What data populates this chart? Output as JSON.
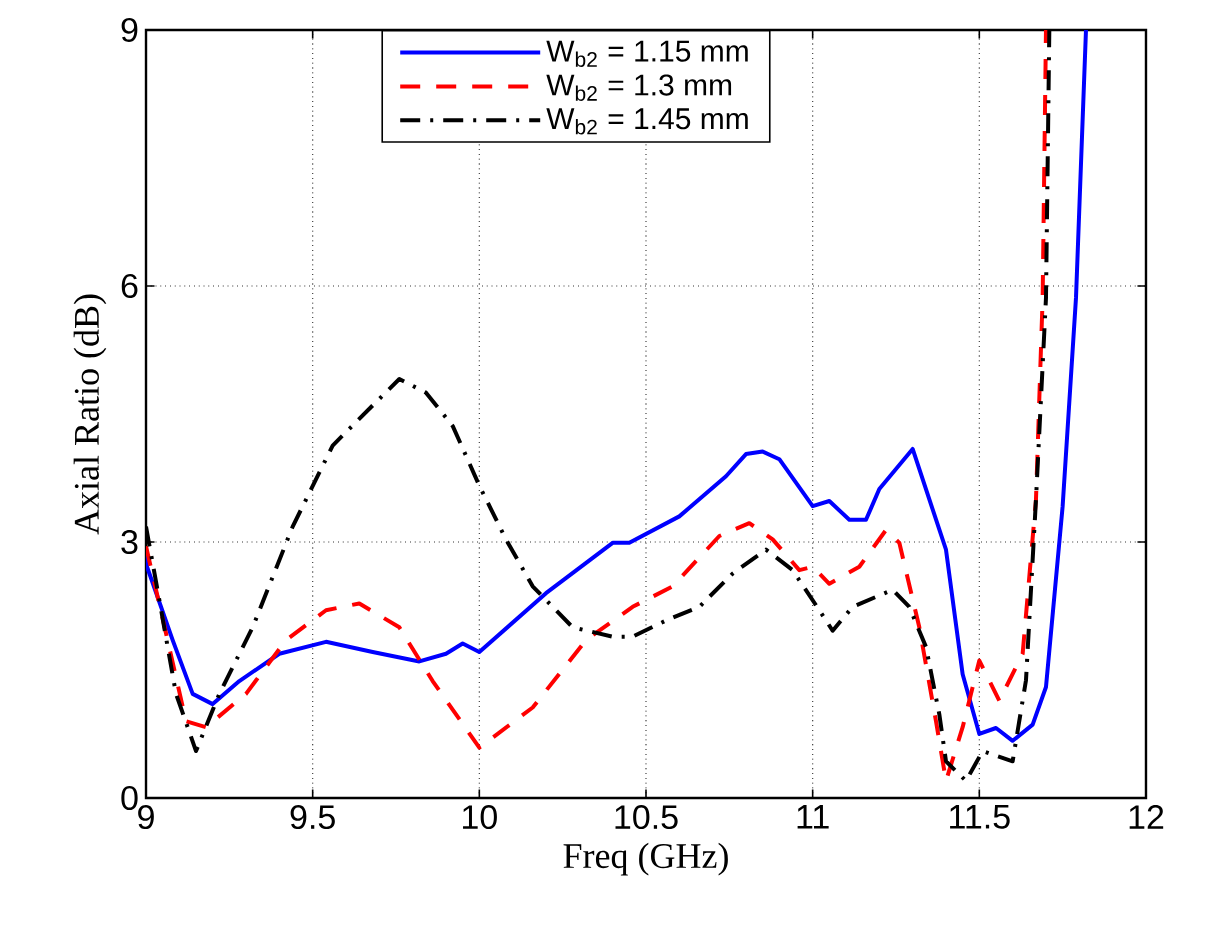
{
  "chart_data": {
    "type": "line",
    "xlabel": "Freq (GHz)",
    "ylabel": "Axial Ratio (dB)",
    "xlim": [
      9,
      12
    ],
    "ylim": [
      0,
      9
    ],
    "xticks": [
      9,
      9.5,
      10,
      10.5,
      11,
      11.5,
      12
    ],
    "yticks": [
      0,
      3,
      6,
      9
    ],
    "grid": true,
    "legend": "top",
    "marker": "none",
    "series": [
      {
        "name": "W$_{b2}$ = 1.15 mm",
        "color": "#0000ff",
        "line_style": "solid",
        "x": [
          9.0,
          9.003,
          9.08,
          9.14,
          9.2,
          9.28,
          9.4,
          9.54,
          9.68,
          9.82,
          9.9,
          9.95,
          10.0,
          10.2,
          10.4,
          10.45,
          10.6,
          10.74,
          10.8,
          10.85,
          10.9,
          11.0,
          11.05,
          11.11,
          11.16,
          11.2,
          11.3,
          11.4,
          11.45,
          11.5,
          11.55,
          11.6,
          11.66,
          11.7,
          11.75,
          11.79,
          11.82
        ],
        "values": [
          2.9,
          2.71,
          1.85,
          1.22,
          1.1,
          1.37,
          1.69,
          1.83,
          1.71,
          1.6,
          1.69,
          1.81,
          1.71,
          2.4,
          2.99,
          2.99,
          3.3,
          3.77,
          4.03,
          4.06,
          3.97,
          3.42,
          3.48,
          3.26,
          3.26,
          3.62,
          4.09,
          2.91,
          1.45,
          0.75,
          0.82,
          0.67,
          0.86,
          1.3,
          3.42,
          5.86,
          9
        ]
      },
      {
        "name": "W$_{b2}$ = 1.3 mm",
        "color": "#ff0000",
        "line_style": "dashed",
        "x": [
          9.0,
          9.06,
          9.12,
          9.18,
          9.3,
          9.42,
          9.54,
          9.64,
          9.76,
          9.86,
          10.0,
          10.16,
          10.32,
          10.46,
          10.58,
          10.72,
          10.81,
          10.88,
          10.96,
          11.0,
          11.05,
          11.14,
          11.22,
          11.26,
          11.32,
          11.37,
          11.4,
          11.45,
          11.5,
          11.56,
          11.63,
          11.67,
          11.69,
          11.7
        ],
        "values": [
          2.95,
          1.93,
          0.9,
          0.83,
          1.22,
          1.85,
          2.2,
          2.28,
          2.0,
          1.37,
          0.59,
          1.06,
          1.85,
          2.24,
          2.48,
          3.07,
          3.22,
          3.03,
          2.67,
          2.71,
          2.51,
          2.71,
          3.14,
          2.99,
          2.0,
          0.9,
          0.2,
          0.83,
          1.61,
          1.14,
          1.69,
          3.5,
          5.86,
          9
        ]
      },
      {
        "name": "W$_{b2}$ = 1.45 mm",
        "color": "#000000",
        "line_style": "dashdot",
        "x": [
          9.0,
          9.04,
          9.09,
          9.15,
          9.22,
          9.32,
          9.44,
          9.56,
          9.68,
          9.76,
          9.84,
          9.92,
          10.0,
          10.08,
          10.16,
          10.28,
          10.4,
          10.46,
          10.56,
          10.66,
          10.76,
          10.86,
          10.94,
          11.02,
          11.06,
          11.12,
          11.24,
          11.29,
          11.34,
          11.38,
          11.4,
          11.46,
          11.51,
          11.6,
          11.64,
          11.67,
          11.7,
          11.71
        ],
        "values": [
          3.18,
          2.32,
          1.22,
          0.55,
          1.22,
          2.0,
          3.18,
          4.13,
          4.6,
          4.91,
          4.75,
          4.36,
          3.66,
          3.03,
          2.48,
          2.0,
          1.89,
          1.89,
          2.08,
          2.24,
          2.63,
          2.91,
          2.67,
          2.2,
          1.96,
          2.24,
          2.44,
          2.24,
          1.77,
          0.98,
          0.43,
          0.2,
          0.55,
          0.43,
          1.38,
          3.5,
          5.86,
          9
        ]
      }
    ]
  }
}
